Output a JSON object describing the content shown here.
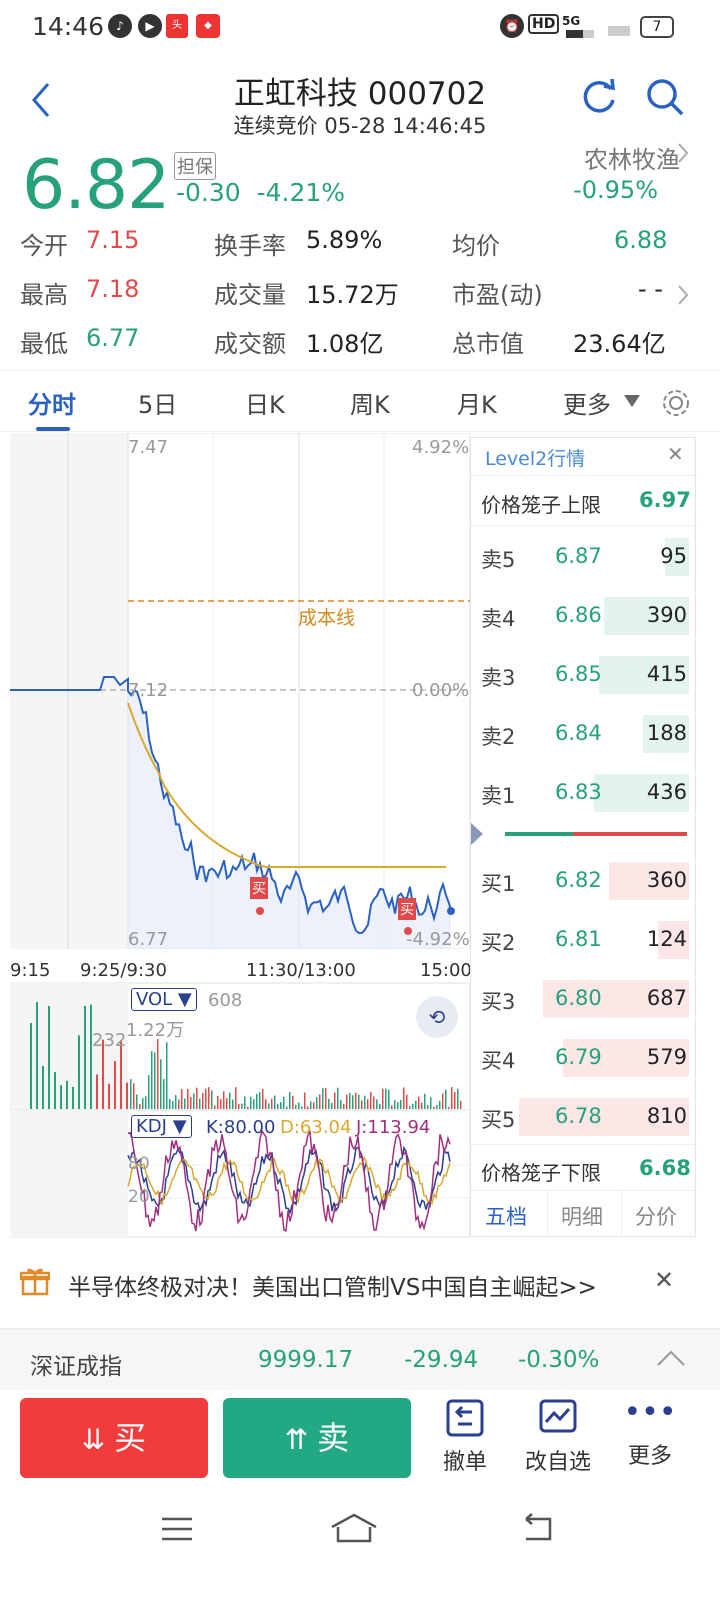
{
  "status_bar": {
    "time": "14:46",
    "battery": "7",
    "network": "5G"
  },
  "header": {
    "title": "正虹科技 000702",
    "subtitle": "连续竞价 05-28 14:46:45"
  },
  "quote": {
    "price": "6.82",
    "badge": "担保",
    "change": "-0.30",
    "change_pct": "-4.21%",
    "sector_name": "农林牧渔",
    "sector_change": "-0.95%"
  },
  "stats": [
    {
      "label": "今开",
      "value": "7.15"
    },
    {
      "label": "最高",
      "value": "7.18"
    },
    {
      "label": "最低",
      "value": "6.77"
    },
    {
      "label": "换手率",
      "value": "5.89%"
    },
    {
      "label": "成交量",
      "value": "15.72万"
    },
    {
      "label": "成交额",
      "value": "1.08亿"
    },
    {
      "label": "均价",
      "value": "6.88"
    },
    {
      "label": "市盈(动)",
      "value": "- -"
    },
    {
      "label": "总市值",
      "value": "23.64亿"
    }
  ],
  "tabs": [
    "分时",
    "5日",
    "日K",
    "周K",
    "月K",
    "更多"
  ],
  "chart": {
    "price_top": "7.47",
    "price_mid": "7.12",
    "price_bottom": "6.77",
    "pct_top": "4.92%",
    "pct_mid": "0.00%",
    "pct_bottom": "-4.92%",
    "cost_line_label": "成本线",
    "buy_mark": "买",
    "time_labels": [
      "9:15",
      "9:25/9:30",
      "11:30/13:00",
      "15:00"
    ],
    "vol_label": "VOL",
    "vol_value": "608",
    "vol_max": "1.22万",
    "vol_left": "232",
    "kdj_label": "KDJ",
    "kdj_k": "K:80.00",
    "kdj_d": "D:63.04",
    "kdj_j": "J:113.94",
    "kdj_80": "80",
    "kdj_20": "20"
  },
  "level2": {
    "title": "Level2行情",
    "upper_limit_label": "价格笼子上限",
    "upper_limit": "6.97",
    "lower_limit_label": "价格笼子下限",
    "lower_limit": "6.68",
    "asks": [
      {
        "label": "卖5",
        "price": "6.87",
        "vol": "95",
        "share": 0.14
      },
      {
        "label": "卖4",
        "price": "6.86",
        "vol": "390",
        "share": 0.5
      },
      {
        "label": "卖3",
        "price": "6.85",
        "vol": "415",
        "share": 0.53
      },
      {
        "label": "卖2",
        "price": "6.84",
        "vol": "188",
        "share": 0.27
      },
      {
        "label": "卖1",
        "price": "6.83",
        "vol": "436",
        "share": 0.56
      }
    ],
    "bids": [
      {
        "label": "买1",
        "price": "6.82",
        "vol": "360",
        "share": 0.47
      },
      {
        "label": "买2",
        "price": "6.81",
        "vol": "124",
        "share": 0.18
      },
      {
        "label": "买3",
        "price": "6.80",
        "vol": "687",
        "share": 0.86
      },
      {
        "label": "买4",
        "price": "6.79",
        "vol": "579",
        "share": 0.74
      },
      {
        "label": "买5",
        "price": "6.78",
        "vol": "810",
        "share": 1.0
      }
    ],
    "bottom_tabs": [
      "五档",
      "明细",
      "分价"
    ]
  },
  "news": {
    "text": "半导体终极对决！美国出口管制VS中国自主崛起>>"
  },
  "index": {
    "name": "深证成指",
    "value": "9999.17",
    "change": "-29.94",
    "pct": "-0.30%"
  },
  "actions": {
    "buy": "买",
    "sell": "卖",
    "cancel": "撤单",
    "watchlist": "改自选",
    "more": "更多"
  },
  "colors": {
    "up": "#e24a4a",
    "down": "#26a17b",
    "accent": "#2a62c4",
    "avg_line": "#d9a82e"
  }
}
